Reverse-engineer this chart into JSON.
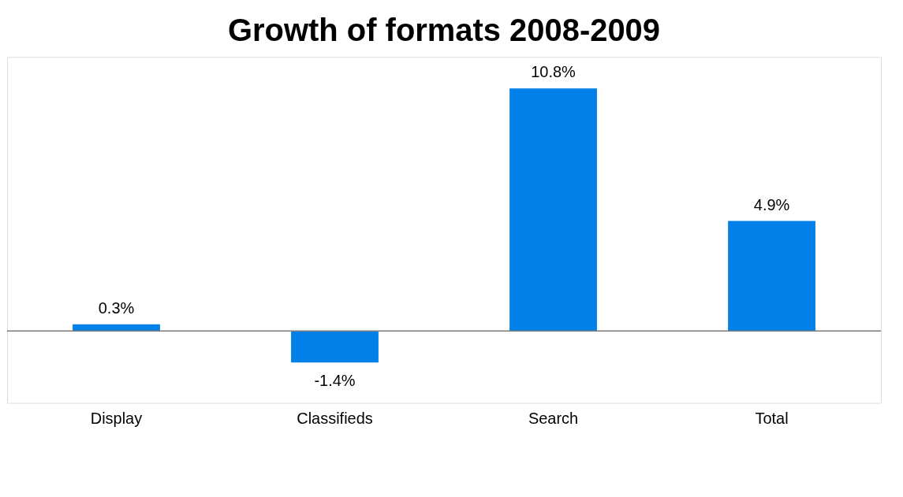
{
  "chart_data": {
    "type": "bar",
    "title": "Growth of formats 2008-2009",
    "categories": [
      "Display",
      "Classifieds",
      "Search",
      "Total"
    ],
    "values": [
      0.3,
      -1.4,
      10.8,
      4.9
    ],
    "value_labels": [
      "0.3%",
      "-1.4%",
      "10.8%",
      "4.9%"
    ],
    "color": "#0080e8",
    "ylim": [
      -3.2,
      12.2
    ]
  }
}
